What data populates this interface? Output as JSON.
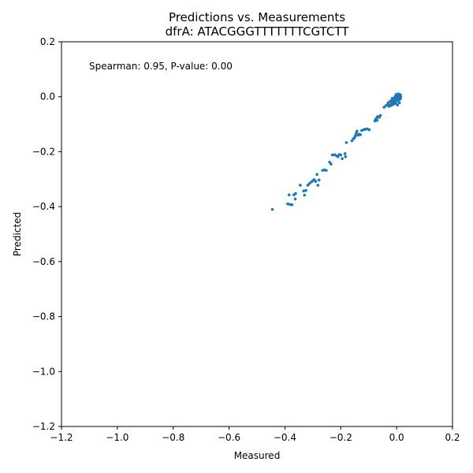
{
  "chart_data": {
    "type": "scatter",
    "title": "Predictions vs. Measurements",
    "subtitle": "dfrA: ATACGGGTTTTTTTCGTCTT",
    "xlabel": "Measured",
    "ylabel": "Predicted",
    "xlim": [
      -1.2,
      0.2
    ],
    "ylim": [
      -1.2,
      0.2
    ],
    "xticks": [
      -1.2,
      -1.0,
      -0.8,
      -0.6,
      -0.4,
      -0.2,
      0.0,
      0.2
    ],
    "yticks": [
      -1.2,
      -1.0,
      -0.8,
      -0.6,
      -0.4,
      -0.2,
      0.0,
      0.2
    ],
    "xtick_labels": [
      "−1.2",
      "−1.0",
      "−0.8",
      "−0.6",
      "−0.4",
      "−0.2",
      "0.0",
      "0.2"
    ],
    "ytick_labels": [
      "−1.2",
      "−1.0",
      "−0.8",
      "−0.6",
      "−0.4",
      "−0.2",
      "0.0",
      "0.2"
    ],
    "annotation": "Spearman: 0.95, P-value: 0.00",
    "grid": false,
    "marker_color": "#1f77b4",
    "points": [
      [
        -0.445,
        -0.41
      ],
      [
        -0.39,
        -0.39
      ],
      [
        -0.382,
        -0.392
      ],
      [
        -0.375,
        -0.393
      ],
      [
        -0.385,
        -0.357
      ],
      [
        -0.368,
        -0.357
      ],
      [
        -0.362,
        -0.352
      ],
      [
        -0.363,
        -0.372
      ],
      [
        -0.345,
        -0.322
      ],
      [
        -0.333,
        -0.343
      ],
      [
        -0.325,
        -0.341
      ],
      [
        -0.33,
        -0.358
      ],
      [
        -0.318,
        -0.322
      ],
      [
        -0.312,
        -0.316
      ],
      [
        -0.305,
        -0.31
      ],
      [
        -0.3,
        -0.305
      ],
      [
        -0.295,
        -0.302
      ],
      [
        -0.29,
        -0.308
      ],
      [
        -0.285,
        -0.283
      ],
      [
        -0.282,
        -0.322
      ],
      [
        -0.278,
        -0.303
      ],
      [
        -0.265,
        -0.268
      ],
      [
        -0.258,
        -0.266
      ],
      [
        -0.252,
        -0.268
      ],
      [
        -0.24,
        -0.238
      ],
      [
        -0.235,
        -0.245
      ],
      [
        -0.23,
        -0.212
      ],
      [
        -0.222,
        -0.211
      ],
      [
        -0.215,
        -0.215
      ],
      [
        -0.21,
        -0.218
      ],
      [
        -0.205,
        -0.21
      ],
      [
        -0.2,
        -0.212
      ],
      [
        -0.195,
        -0.225
      ],
      [
        -0.185,
        -0.207
      ],
      [
        -0.183,
        -0.218
      ],
      [
        -0.18,
        -0.167
      ],
      [
        -0.16,
        -0.16
      ],
      [
        -0.155,
        -0.153
      ],
      [
        -0.15,
        -0.148
      ],
      [
        -0.148,
        -0.142
      ],
      [
        -0.145,
        -0.133
      ],
      [
        -0.142,
        -0.125
      ],
      [
        -0.138,
        -0.14
      ],
      [
        -0.135,
        -0.136
      ],
      [
        -0.13,
        -0.138
      ],
      [
        -0.125,
        -0.123
      ],
      [
        -0.118,
        -0.12
      ],
      [
        -0.112,
        -0.118
      ],
      [
        -0.105,
        -0.117
      ],
      [
        -0.098,
        -0.12
      ],
      [
        -0.078,
        -0.088
      ],
      [
        -0.075,
        -0.082
      ],
      [
        -0.072,
        -0.078
      ],
      [
        -0.07,
        -0.086
      ],
      [
        -0.068,
        -0.072
      ],
      [
        -0.062,
        -0.075
      ],
      [
        -0.058,
        -0.068
      ],
      [
        -0.045,
        -0.038
      ],
      [
        -0.038,
        -0.032
      ],
      [
        -0.032,
        -0.028
      ],
      [
        -0.03,
        -0.022
      ],
      [
        -0.028,
        -0.035
      ],
      [
        -0.025,
        -0.018
      ],
      [
        -0.022,
        -0.03
      ],
      [
        -0.02,
        -0.015
      ],
      [
        -0.018,
        -0.025
      ],
      [
        -0.015,
        -0.01
      ],
      [
        -0.013,
        -0.02
      ],
      [
        -0.012,
        -0.028
      ],
      [
        -0.01,
        -0.005
      ],
      [
        -0.008,
        -0.012
      ],
      [
        -0.006,
        -0.002
      ],
      [
        -0.005,
        -0.018
      ],
      [
        -0.004,
        0.002
      ],
      [
        -0.003,
        -0.008
      ],
      [
        -0.002,
        -0.025
      ],
      [
        -0.001,
        0.004
      ],
      [
        0.0,
        -0.003
      ],
      [
        0.001,
        -0.012
      ],
      [
        0.002,
        0.006
      ],
      [
        0.003,
        -0.006
      ],
      [
        0.004,
        0.003
      ],
      [
        0.005,
        -0.015
      ],
      [
        0.006,
        0.008
      ],
      [
        0.007,
        0.0
      ],
      [
        0.008,
        0.005
      ],
      [
        0.009,
        -0.004
      ],
      [
        0.01,
        0.009
      ],
      [
        0.012,
        0.002
      ],
      [
        0.013,
        -0.008
      ],
      [
        0.014,
        0.006
      ],
      [
        0.015,
        -0.001
      ],
      [
        0.003,
        -0.03
      ],
      [
        0.01,
        -0.022
      ],
      [
        -0.008,
        -0.022
      ],
      [
        -0.016,
        -0.006
      ],
      [
        -0.02,
        -0.032
      ],
      [
        0.005,
        0.01
      ],
      [
        -0.002,
        0.008
      ],
      [
        0.011,
        -0.01
      ]
    ]
  }
}
